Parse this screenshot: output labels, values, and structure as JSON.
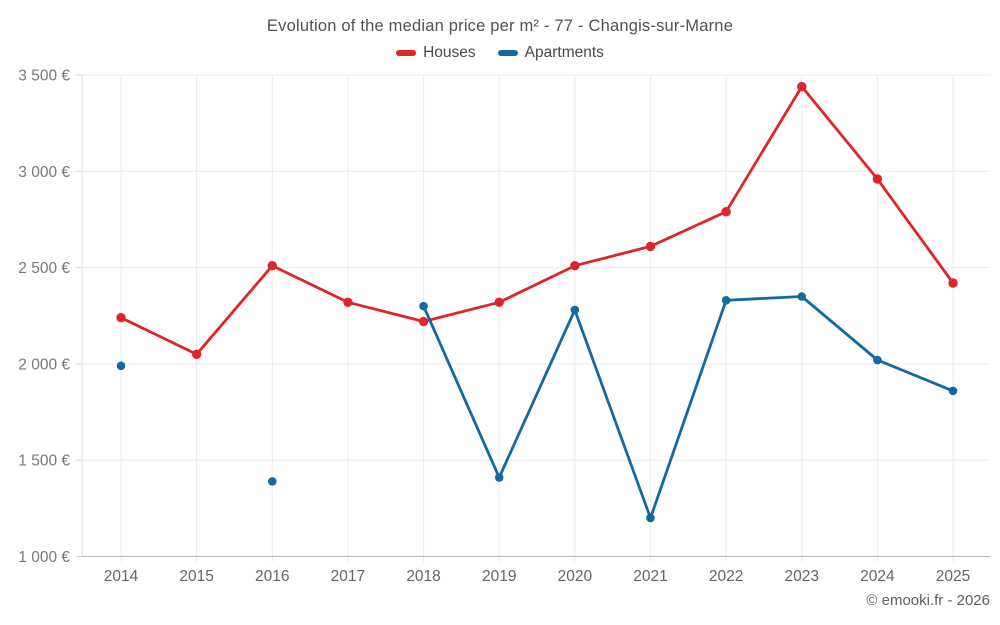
{
  "title": "Evolution of the median price per m² - 77 - Changis-sur-Marne",
  "copyright": "© emooki.fr - 2026",
  "colors": {
    "houses": "#e02427",
    "apartments": "#15699f",
    "gridline": "#ececec",
    "x_axis_line": "#b9bbbd",
    "y_axis_line": "#dddfe0",
    "tick": "#d7d9da",
    "y_tick_label": "#76787b",
    "x_tick_label": "#636567",
    "title_text": "#4e5257",
    "background": "#ffffff"
  },
  "chart_data": {
    "type": "line",
    "title": "Evolution of the median price per m² - 77 - Changis-sur-Marne",
    "x": [
      2014,
      2015,
      2016,
      2017,
      2018,
      2019,
      2020,
      2021,
      2022,
      2023,
      2024,
      2025
    ],
    "series": [
      {
        "name": "Houses",
        "color": "#e02427",
        "values": [
          2240,
          2050,
          2510,
          2320,
          2220,
          2320,
          2510,
          2610,
          2790,
          3440,
          2960,
          2420
        ]
      },
      {
        "name": "Apartments",
        "color": "#15699f",
        "values": [
          1990,
          null,
          1390,
          null,
          2300,
          1410,
          2280,
          1200,
          2330,
          2350,
          2020,
          1860
        ]
      }
    ],
    "yticks": [
      1000,
      1500,
      2000,
      2500,
      3000,
      3500
    ],
    "ytick_labels": [
      "1 000 €",
      "1 500 €",
      "2 000 €",
      "2 500 €",
      "3 000 €",
      "3 500 €"
    ],
    "xtick_labels": [
      "2014",
      "2015",
      "2016",
      "2017",
      "2018",
      "2019",
      "2020",
      "2021",
      "2022",
      "2023",
      "2024",
      "2025"
    ],
    "ylim": [
      1000,
      3590
    ],
    "xlabel": "",
    "ylabel": "",
    "grid": true,
    "legend_position": "top",
    "units": "€/m²"
  }
}
